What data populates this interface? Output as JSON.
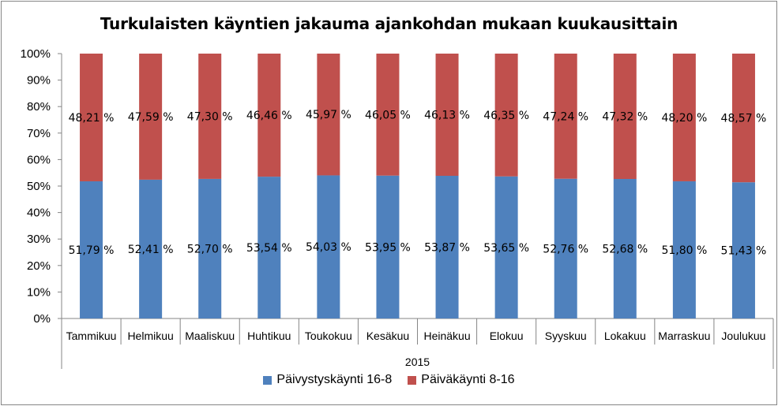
{
  "chart_data": {
    "type": "bar",
    "stacked": "percent",
    "title": "Turkulaisten käyntien jakauma ajankohdan  mukaan kuukausittain",
    "categories": [
      "Tammikuu",
      "Helmikuu",
      "Maaliskuu",
      "Huhtikuu",
      "Toukokuu",
      "Kesäkuu",
      "Heinäkuu",
      "Elokuu",
      "Syyskuu",
      "Lokakuu",
      "Marraskuu",
      "Joulukuu"
    ],
    "group_label": "2015",
    "series": [
      {
        "name": "Päivystyskäynti 16-8",
        "color": "#4f81bd",
        "values": [
          51.79,
          52.41,
          52.7,
          53.54,
          54.03,
          53.95,
          53.87,
          53.65,
          52.76,
          52.68,
          51.8,
          51.43
        ],
        "labels": [
          "51,79 %",
          "52,41 %",
          "52,70 %",
          "53,54 %",
          "54,03 %",
          "53,95 %",
          "53,87 %",
          "53,65 %",
          "52,76 %",
          "52,68 %",
          "51,80 %",
          "51,43 %"
        ]
      },
      {
        "name": "Päiväkäynti 8-16",
        "color": "#c0504d",
        "values": [
          48.21,
          47.59,
          47.3,
          46.46,
          45.97,
          46.05,
          46.13,
          46.35,
          47.24,
          47.32,
          48.2,
          48.57
        ],
        "labels": [
          "48,21 %",
          "47,59 %",
          "47,30 %",
          "46,46 %",
          "45,97 %",
          "46,05 %",
          "46,13 %",
          "46,35 %",
          "47,24 %",
          "47,32 %",
          "48,20 %",
          "48,57 %"
        ]
      }
    ],
    "ylim": [
      0,
      100
    ],
    "yticks": [
      "0%",
      "10%",
      "20%",
      "30%",
      "40%",
      "50%",
      "60%",
      "70%",
      "80%",
      "90%",
      "100%"
    ],
    "grid": false,
    "legend": "bottom"
  }
}
